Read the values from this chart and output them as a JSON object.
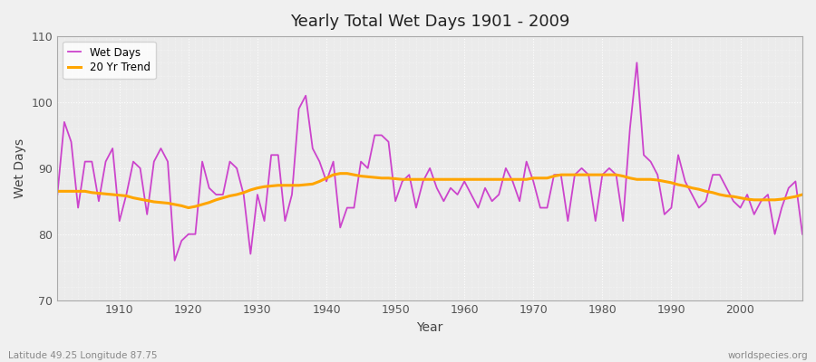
{
  "title": "Yearly Total Wet Days 1901 - 2009",
  "xlabel": "Year",
  "ylabel": "Wet Days",
  "subtitle_left": "Latitude 49.25 Longitude 87.75",
  "subtitle_right": "worldspecies.org",
  "ylim": [
    70,
    110
  ],
  "xlim": [
    1901,
    2009
  ],
  "yticks": [
    70,
    80,
    90,
    100,
    110
  ],
  "xticks": [
    1910,
    1920,
    1930,
    1940,
    1950,
    1960,
    1970,
    1980,
    1990,
    2000
  ],
  "wet_days_color": "#CC44CC",
  "trend_color": "#FFA500",
  "background_color": "#F0F0F0",
  "plot_bg_color": "#EBEBEB",
  "legend_labels": [
    "Wet Days",
    "20 Yr Trend"
  ],
  "wet_days": {
    "1901": 86,
    "1902": 97,
    "1903": 94,
    "1904": 84,
    "1905": 91,
    "1906": 91,
    "1907": 85,
    "1908": 91,
    "1909": 93,
    "1910": 82,
    "1911": 86,
    "1912": 91,
    "1913": 90,
    "1914": 83,
    "1915": 91,
    "1916": 93,
    "1917": 91,
    "1918": 76,
    "1919": 79,
    "1920": 80,
    "1921": 80,
    "1922": 91,
    "1923": 87,
    "1924": 86,
    "1925": 86,
    "1926": 91,
    "1927": 90,
    "1928": 86,
    "1929": 77,
    "1930": 86,
    "1931": 82,
    "1932": 92,
    "1933": 92,
    "1934": 82,
    "1935": 86,
    "1936": 99,
    "1937": 101,
    "1938": 93,
    "1939": 91,
    "1940": 88,
    "1941": 91,
    "1942": 81,
    "1943": 84,
    "1944": 84,
    "1945": 91,
    "1946": 90,
    "1947": 95,
    "1948": 95,
    "1949": 94,
    "1950": 85,
    "1951": 88,
    "1952": 89,
    "1953": 84,
    "1954": 88,
    "1955": 90,
    "1956": 87,
    "1957": 85,
    "1958": 87,
    "1959": 86,
    "1960": 88,
    "1961": 86,
    "1962": 84,
    "1963": 87,
    "1964": 85,
    "1965": 86,
    "1966": 90,
    "1967": 88,
    "1968": 85,
    "1969": 91,
    "1970": 88,
    "1971": 84,
    "1972": 84,
    "1973": 89,
    "1974": 89,
    "1975": 82,
    "1976": 89,
    "1977": 90,
    "1978": 89,
    "1979": 82,
    "1980": 89,
    "1981": 90,
    "1982": 89,
    "1983": 82,
    "1984": 96,
    "1985": 106,
    "1986": 92,
    "1987": 91,
    "1988": 89,
    "1989": 83,
    "1990": 84,
    "1991": 92,
    "1992": 88,
    "1993": 86,
    "1994": 84,
    "1995": 85,
    "1996": 89,
    "1997": 89,
    "1998": 87,
    "1999": 85,
    "2000": 84,
    "2001": 86,
    "2002": 83,
    "2003": 85,
    "2004": 86,
    "2005": 80,
    "2006": 84,
    "2007": 87,
    "2008": 88,
    "2009": 80
  },
  "trend_20yr": {
    "1901": 86.5,
    "1902": 86.5,
    "1903": 86.5,
    "1904": 86.5,
    "1905": 86.5,
    "1906": 86.3,
    "1907": 86.2,
    "1908": 86.1,
    "1909": 86.0,
    "1910": 85.9,
    "1911": 85.8,
    "1912": 85.5,
    "1913": 85.3,
    "1914": 85.1,
    "1915": 84.9,
    "1916": 84.8,
    "1917": 84.7,
    "1918": 84.5,
    "1919": 84.3,
    "1920": 84.0,
    "1921": 84.2,
    "1922": 84.5,
    "1923": 84.8,
    "1924": 85.2,
    "1925": 85.5,
    "1926": 85.8,
    "1927": 86.0,
    "1928": 86.3,
    "1929": 86.7,
    "1930": 87.0,
    "1931": 87.2,
    "1932": 87.3,
    "1933": 87.4,
    "1934": 87.4,
    "1935": 87.4,
    "1936": 87.4,
    "1937": 87.5,
    "1938": 87.6,
    "1939": 88.0,
    "1940": 88.5,
    "1941": 89.0,
    "1942": 89.2,
    "1943": 89.2,
    "1944": 89.0,
    "1945": 88.8,
    "1946": 88.7,
    "1947": 88.6,
    "1948": 88.5,
    "1949": 88.5,
    "1950": 88.4,
    "1951": 88.3,
    "1952": 88.3,
    "1953": 88.3,
    "1954": 88.3,
    "1955": 88.3,
    "1956": 88.3,
    "1957": 88.3,
    "1958": 88.3,
    "1959": 88.3,
    "1960": 88.3,
    "1961": 88.3,
    "1962": 88.3,
    "1963": 88.3,
    "1964": 88.3,
    "1965": 88.3,
    "1966": 88.3,
    "1967": 88.3,
    "1968": 88.3,
    "1969": 88.3,
    "1970": 88.5,
    "1971": 88.5,
    "1972": 88.5,
    "1973": 88.8,
    "1974": 89.0,
    "1975": 89.0,
    "1976": 89.0,
    "1977": 89.0,
    "1978": 89.0,
    "1979": 89.0,
    "1980": 89.0,
    "1981": 89.0,
    "1982": 89.0,
    "1983": 88.8,
    "1984": 88.5,
    "1985": 88.3,
    "1986": 88.3,
    "1987": 88.3,
    "1988": 88.2,
    "1989": 88.0,
    "1990": 87.8,
    "1991": 87.5,
    "1992": 87.3,
    "1993": 87.0,
    "1994": 86.8,
    "1995": 86.5,
    "1996": 86.3,
    "1997": 86.0,
    "1998": 85.8,
    "1999": 85.7,
    "2000": 85.5,
    "2001": 85.3,
    "2002": 85.2,
    "2003": 85.2,
    "2004": 85.2,
    "2005": 85.2,
    "2006": 85.3,
    "2007": 85.5,
    "2008": 85.7,
    "2009": 86.0
  }
}
